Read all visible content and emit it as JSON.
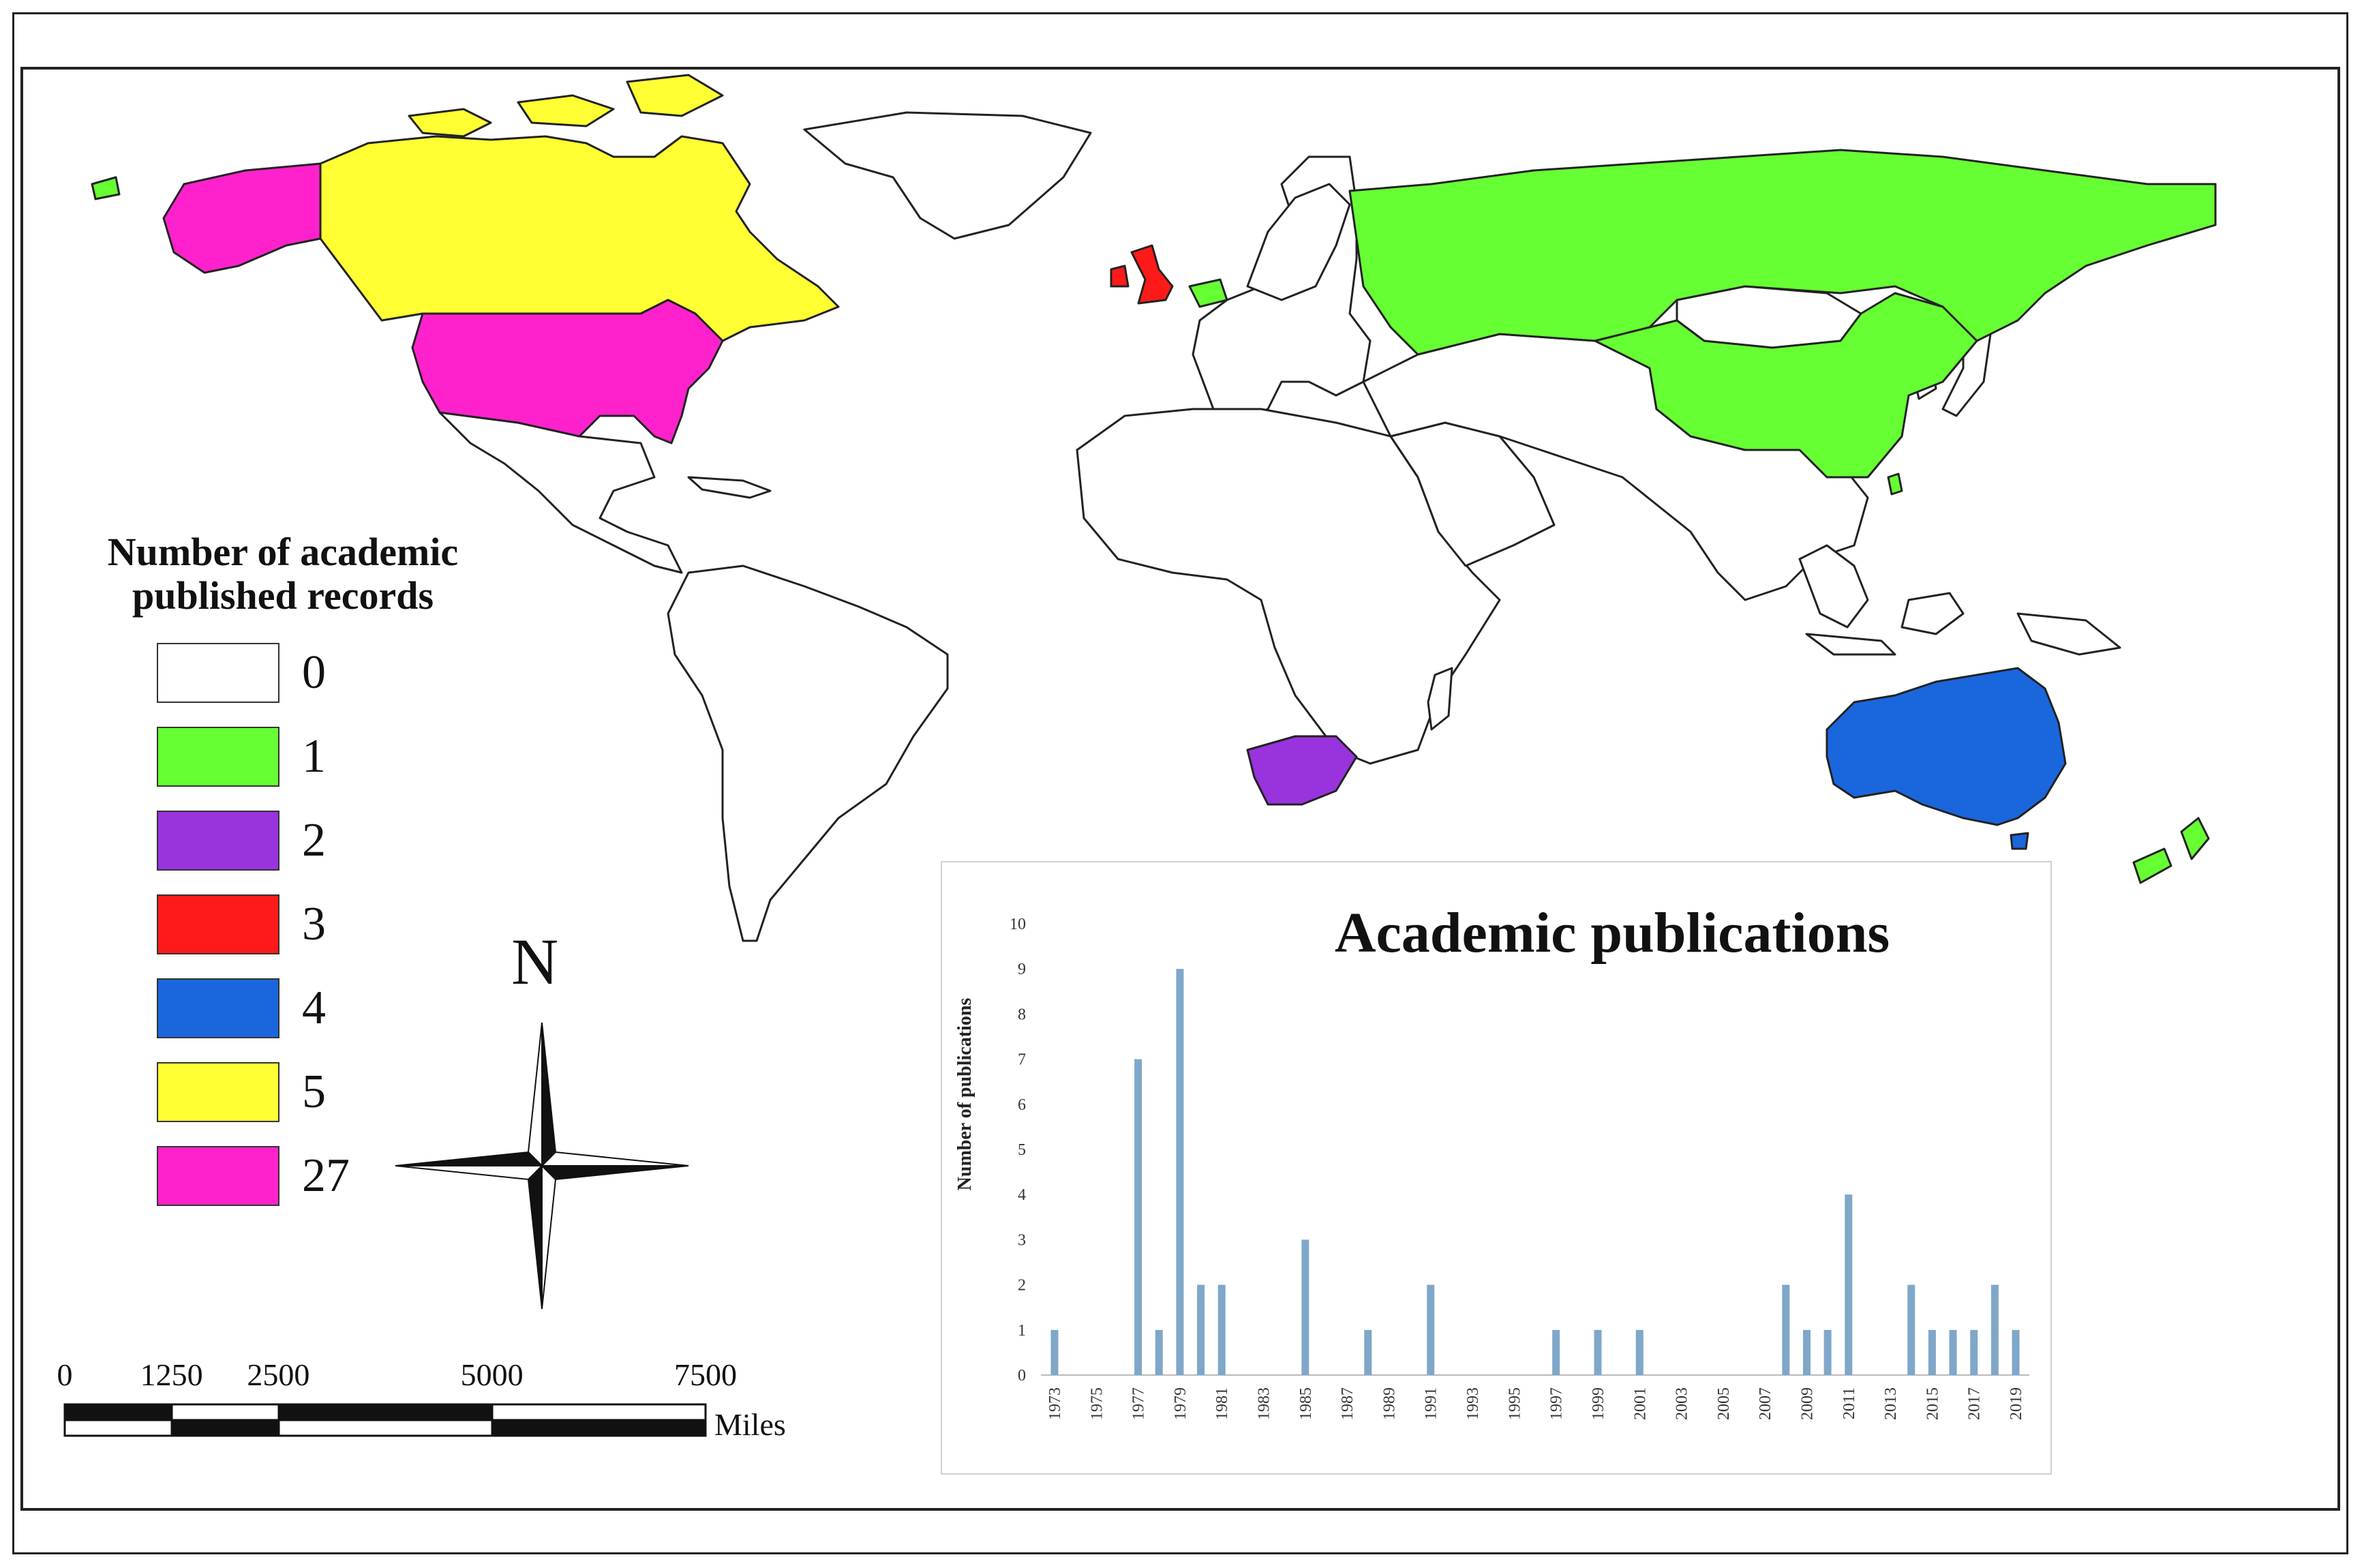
{
  "legend": {
    "title_line1": "Number of  academic",
    "title_line2": "published records",
    "items": [
      {
        "label": "0",
        "color": "#ffffff"
      },
      {
        "label": "1",
        "color": "#66ff33"
      },
      {
        "label": "2",
        "color": "#9933dd"
      },
      {
        "label": "3",
        "color": "#ff1a1a"
      },
      {
        "label": "4",
        "color": "#1a66dd"
      },
      {
        "label": "5",
        "color": "#ffff33"
      },
      {
        "label": "27",
        "color": "#ff22cc"
      }
    ]
  },
  "north_arrow": {
    "label": "N"
  },
  "scale_bar": {
    "ticks": [
      "0",
      "1250",
      "2500",
      "5000",
      "7500"
    ],
    "unit": "Miles"
  },
  "countries": [
    {
      "name": "Alaska (USA)",
      "value": 27
    },
    {
      "name": "United States",
      "value": 27
    },
    {
      "name": "Canada",
      "value": 5
    },
    {
      "name": "United Kingdom",
      "value": 3
    },
    {
      "name": "Netherlands",
      "value": 1
    },
    {
      "name": "Russia",
      "value": 1
    },
    {
      "name": "China",
      "value": 1
    },
    {
      "name": "Taiwan",
      "value": 1
    },
    {
      "name": "New Zealand",
      "value": 1
    },
    {
      "name": "South Africa",
      "value": 2
    },
    {
      "name": "Australia",
      "value": 4
    }
  ],
  "chart_data": {
    "type": "bar",
    "title": "Academic publications",
    "ylabel": "Number of publications",
    "ylim": [
      0,
      10
    ],
    "yticks": [
      0,
      1,
      2,
      3,
      4,
      5,
      6,
      7,
      8,
      9,
      10
    ],
    "xtick_labels": [
      "1973",
      "1975",
      "1977",
      "1979",
      "1981",
      "1983",
      "1985",
      "1987",
      "1989",
      "1991",
      "1993",
      "1995",
      "1997",
      "1999",
      "2001",
      "2003",
      "2005",
      "2007",
      "2009",
      "2011",
      "2013",
      "2015",
      "2017",
      "2019"
    ],
    "x": [
      1973,
      1977,
      1978,
      1979,
      1980,
      1981,
      1985,
      1988,
      1991,
      1997,
      1999,
      2001,
      2008,
      2009,
      2010,
      2011,
      2014,
      2015,
      2016,
      2017,
      2018,
      2019
    ],
    "values": [
      1,
      7,
      1,
      9,
      2,
      2,
      3,
      1,
      2,
      1,
      1,
      1,
      2,
      1,
      1,
      4,
      2,
      1,
      1,
      1,
      2,
      1
    ],
    "bar_color": "#7fa7c9",
    "grid": false
  }
}
